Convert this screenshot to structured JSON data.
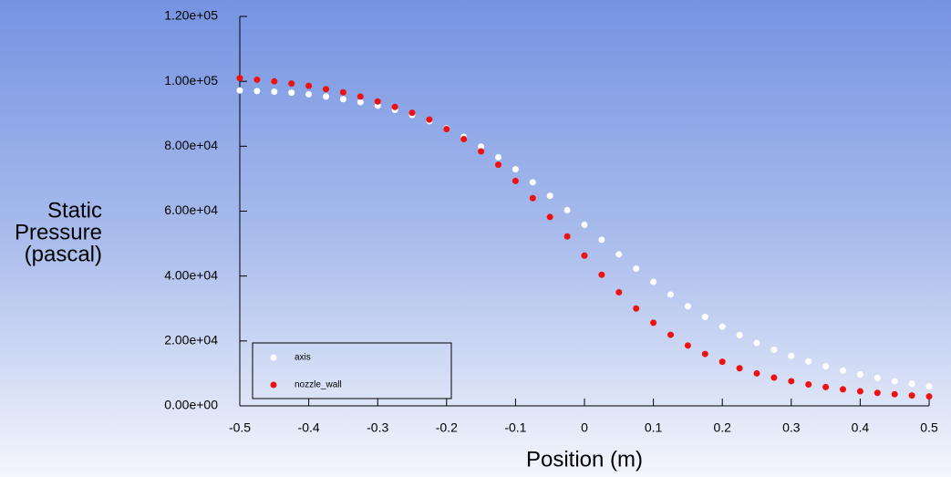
{
  "chart_data": {
    "type": "scatter",
    "xlabel": "Position (m)",
    "ylabel": [
      "Static",
      "Pressure",
      "(pascal)"
    ],
    "x": [
      -0.5,
      -0.475,
      -0.45,
      -0.425,
      -0.4,
      -0.375,
      -0.35,
      -0.325,
      -0.3,
      -0.275,
      -0.25,
      -0.225,
      -0.2,
      -0.175,
      -0.15,
      -0.125,
      -0.1,
      -0.075,
      -0.05,
      -0.025,
      0,
      0.025,
      0.05,
      0.075,
      0.1,
      0.125,
      0.15,
      0.175,
      0.2,
      0.225,
      0.25,
      0.275,
      0.3,
      0.325,
      0.35,
      0.375,
      0.4,
      0.425,
      0.45,
      0.475,
      0.5
    ],
    "series": [
      {
        "name": "axis",
        "color": "#ffffff",
        "values": [
          97200,
          97000,
          96800,
          96500,
          96000,
          95300,
          94500,
          93600,
          92500,
          91200,
          89600,
          87700,
          85500,
          82900,
          79900,
          76600,
          72900,
          68900,
          64700,
          60300,
          55800,
          51200,
          46700,
          42300,
          38200,
          34300,
          30700,
          27400,
          24400,
          21800,
          19400,
          17300,
          15400,
          13700,
          12200,
          10900,
          9700,
          8600,
          7600,
          6800,
          6000
        ]
      },
      {
        "name": "nozzle_wall",
        "color": "#ee1111",
        "values": [
          101000,
          100500,
          100000,
          99300,
          98600,
          97600,
          96600,
          95300,
          93800,
          92100,
          90300,
          88200,
          85300,
          82200,
          78400,
          74300,
          69300,
          64000,
          58200,
          52200,
          46300,
          40400,
          35000,
          30000,
          25600,
          21900,
          18600,
          16000,
          13600,
          11600,
          10000,
          8700,
          7600,
          6600,
          5800,
          5100,
          4500,
          4000,
          3600,
          3200,
          2900
        ]
      }
    ],
    "xlim": [
      -0.5,
      0.5
    ],
    "xticks": [
      -0.5,
      -0.4,
      -0.3,
      -0.2,
      -0.1,
      0,
      0.1,
      0.2,
      0.3,
      0.4,
      0.5
    ],
    "ylim": [
      0,
      120000
    ],
    "yticks": [
      {
        "value": 0,
        "label": "0.00e+00"
      },
      {
        "value": 20000,
        "label": "2.00e+04"
      },
      {
        "value": 40000,
        "label": "4.00e+04"
      },
      {
        "value": 60000,
        "label": "6.00e+04"
      },
      {
        "value": 80000,
        "label": "8.00e+04"
      },
      {
        "value": 100000,
        "label": "1.00e+05"
      },
      {
        "value": 120000,
        "label": "1.20e+05"
      }
    ],
    "legend": "lower-left"
  }
}
